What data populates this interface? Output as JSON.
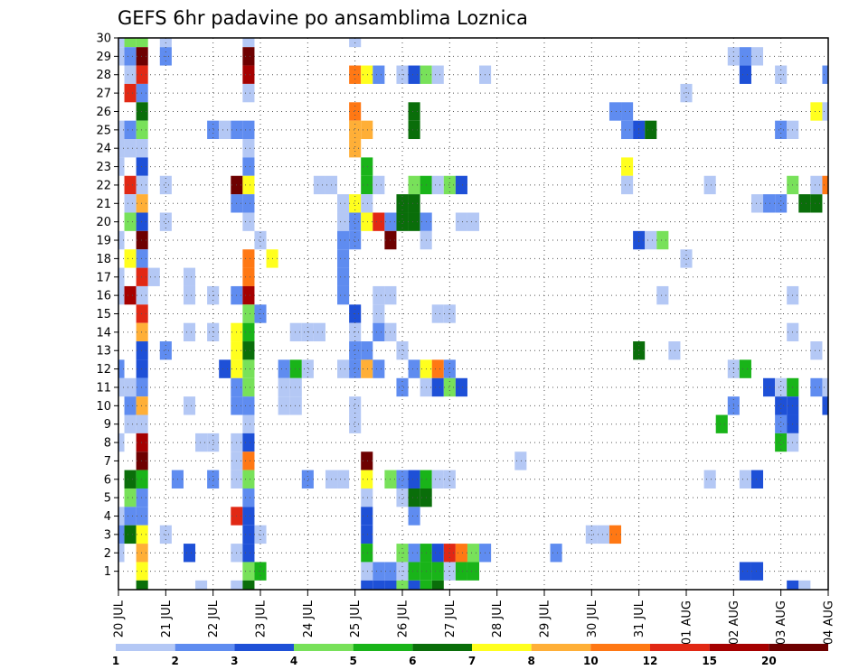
{
  "chart_data": {
    "type": "heatmap",
    "title": "GEFS 6hr padavine po ansamblima Loznica",
    "xlabel": "",
    "ylabel": "",
    "x_tick_labels": [
      "20 JUL",
      "21 JUL",
      "22 JUL",
      "23 JUL",
      "24 JUL",
      "25 JUL",
      "26 JUL",
      "27 JUL",
      "28 JUL",
      "29 JUL",
      "30 JUL",
      "31 JUL",
      "01 AUG",
      "02 AUG",
      "03 AUG",
      "04 AUG"
    ],
    "x_steps_per_day": 4,
    "x_range_steps": [
      0,
      60
    ],
    "y_tick_labels": [
      "1",
      "2",
      "3",
      "4",
      "5",
      "6",
      "7",
      "8",
      "9",
      "10",
      "11",
      "12",
      "13",
      "14",
      "15",
      "16",
      "17",
      "18",
      "19",
      "20",
      "21",
      "22",
      "23",
      "24",
      "25",
      "26",
      "27",
      "28",
      "29",
      "30"
    ],
    "y_range": [
      0,
      30
    ],
    "grid": true,
    "legend": {
      "placement": "bottom",
      "tick_labels": [
        "1",
        "2",
        "3",
        "4",
        "5",
        "6",
        "7",
        "8",
        "10",
        "12",
        "15",
        "20"
      ],
      "colors": [
        "#b4c8f5",
        "#5f8cf0",
        "#1e50d7",
        "#78e15a",
        "#19b419",
        "#0a6e0a",
        "#ffff1e",
        "#ffaf37",
        "#ff7814",
        "#e12814",
        "#a50000",
        "#6e0000"
      ]
    },
    "cells_note_format": "each cell is [time_step_index, member, color_class_index]",
    "cells": [
      [
        0,
        30,
        0
      ],
      [
        0,
        29,
        0
      ],
      [
        0,
        25,
        0
      ],
      [
        0,
        24,
        0
      ],
      [
        0,
        23,
        0
      ],
      [
        0,
        19,
        0
      ],
      [
        0,
        17,
        0
      ],
      [
        0,
        16,
        0
      ],
      [
        0,
        12,
        1
      ],
      [
        0,
        11,
        0
      ],
      [
        0,
        8,
        0
      ],
      [
        0,
        4,
        0
      ],
      [
        0,
        3,
        1
      ],
      [
        0,
        2,
        0
      ],
      [
        1,
        30,
        3
      ],
      [
        1,
        29,
        1
      ],
      [
        1,
        28,
        0
      ],
      [
        1,
        27,
        9
      ],
      [
        1,
        25,
        1
      ],
      [
        1,
        24,
        0
      ],
      [
        1,
        22,
        9
      ],
      [
        1,
        21,
        0
      ],
      [
        1,
        20,
        3
      ],
      [
        1,
        18,
        6
      ],
      [
        1,
        16,
        10
      ],
      [
        1,
        11,
        0
      ],
      [
        1,
        10,
        1
      ],
      [
        1,
        9,
        0
      ],
      [
        1,
        6,
        5
      ],
      [
        1,
        5,
        3
      ],
      [
        1,
        4,
        1
      ],
      [
        1,
        3,
        5
      ],
      [
        2,
        30,
        3
      ],
      [
        2,
        29,
        11
      ],
      [
        2,
        28,
        9
      ],
      [
        2,
        27,
        1
      ],
      [
        2,
        26,
        5
      ],
      [
        2,
        25,
        3
      ],
      [
        2,
        24,
        0
      ],
      [
        2,
        23,
        2
      ],
      [
        2,
        22,
        0
      ],
      [
        2,
        21,
        7
      ],
      [
        2,
        20,
        2
      ],
      [
        2,
        19,
        11
      ],
      [
        2,
        18,
        1
      ],
      [
        2,
        17,
        9
      ],
      [
        2,
        16,
        0
      ],
      [
        2,
        15,
        9
      ],
      [
        2,
        14,
        7
      ],
      [
        2,
        13,
        2
      ],
      [
        2,
        12,
        2
      ],
      [
        2,
        11,
        1
      ],
      [
        2,
        10,
        7
      ],
      [
        2,
        9,
        0
      ],
      [
        2,
        8,
        10
      ],
      [
        2,
        7,
        11
      ],
      [
        2,
        6,
        4
      ],
      [
        2,
        5,
        1
      ],
      [
        2,
        4,
        1
      ],
      [
        2,
        3,
        6
      ],
      [
        2,
        2,
        7
      ],
      [
        2,
        1,
        6
      ],
      [
        2,
        0,
        5
      ],
      [
        3,
        17,
        0
      ],
      [
        4,
        30,
        0
      ],
      [
        4,
        29,
        1
      ],
      [
        4,
        22,
        0
      ],
      [
        4,
        20,
        0
      ],
      [
        4,
        13,
        1
      ],
      [
        4,
        3,
        0
      ],
      [
        5,
        6,
        1
      ],
      [
        6,
        17,
        0
      ],
      [
        6,
        14,
        0
      ],
      [
        6,
        16,
        0
      ],
      [
        6,
        10,
        0
      ],
      [
        6,
        2,
        2
      ],
      [
        7,
        8,
        0
      ],
      [
        7,
        0,
        0
      ],
      [
        8,
        25,
        1
      ],
      [
        8,
        16,
        0
      ],
      [
        8,
        14,
        0
      ],
      [
        8,
        8,
        0
      ],
      [
        8,
        6,
        1
      ],
      [
        9,
        25,
        0
      ],
      [
        9,
        12,
        2
      ],
      [
        10,
        25,
        1
      ],
      [
        10,
        21,
        1
      ],
      [
        10,
        22,
        11
      ],
      [
        10,
        16,
        1
      ],
      [
        10,
        14,
        6
      ],
      [
        10,
        13,
        6
      ],
      [
        10,
        12,
        6
      ],
      [
        10,
        11,
        1
      ],
      [
        10,
        10,
        1
      ],
      [
        10,
        8,
        0
      ],
      [
        10,
        7,
        0
      ],
      [
        10,
        6,
        0
      ],
      [
        10,
        4,
        9
      ],
      [
        10,
        2,
        0
      ],
      [
        10,
        0,
        0
      ],
      [
        11,
        30,
        0
      ],
      [
        11,
        29,
        11
      ],
      [
        11,
        28,
        10
      ],
      [
        11,
        27,
        0
      ],
      [
        11,
        25,
        1
      ],
      [
        11,
        24,
        0
      ],
      [
        11,
        23,
        1
      ],
      [
        11,
        22,
        6
      ],
      [
        11,
        21,
        1
      ],
      [
        11,
        20,
        0
      ],
      [
        11,
        18,
        8
      ],
      [
        11,
        17,
        8
      ],
      [
        11,
        16,
        10
      ],
      [
        11,
        15,
        3
      ],
      [
        11,
        14,
        4
      ],
      [
        11,
        13,
        5
      ],
      [
        11,
        12,
        3
      ],
      [
        11,
        11,
        3
      ],
      [
        11,
        10,
        1
      ],
      [
        11,
        9,
        0
      ],
      [
        11,
        8,
        2
      ],
      [
        11,
        7,
        8
      ],
      [
        11,
        6,
        3
      ],
      [
        11,
        5,
        1
      ],
      [
        11,
        4,
        2
      ],
      [
        11,
        3,
        2
      ],
      [
        11,
        2,
        2
      ],
      [
        11,
        1,
        3
      ],
      [
        11,
        0,
        5
      ],
      [
        12,
        19,
        0
      ],
      [
        12,
        15,
        1
      ],
      [
        12,
        3,
        0
      ],
      [
        12,
        1,
        4
      ],
      [
        13,
        18,
        6
      ],
      [
        14,
        12,
        1
      ],
      [
        14,
        11,
        0
      ],
      [
        14,
        10,
        0
      ],
      [
        15,
        14,
        0
      ],
      [
        15,
        12,
        4
      ],
      [
        15,
        11,
        0
      ],
      [
        15,
        10,
        0
      ],
      [
        16,
        14,
        0
      ],
      [
        16,
        12,
        0
      ],
      [
        16,
        6,
        1
      ],
      [
        17,
        14,
        0
      ],
      [
        17,
        22,
        0
      ],
      [
        18,
        22,
        0
      ],
      [
        18,
        6,
        0
      ],
      [
        19,
        20,
        0
      ],
      [
        19,
        19,
        1
      ],
      [
        19,
        18,
        1
      ],
      [
        19,
        17,
        1
      ],
      [
        19,
        16,
        1
      ],
      [
        19,
        21,
        0
      ],
      [
        19,
        12,
        0
      ],
      [
        19,
        6,
        0
      ],
      [
        20,
        30,
        0
      ],
      [
        20,
        28,
        8
      ],
      [
        20,
        26,
        8
      ],
      [
        20,
        25,
        7
      ],
      [
        20,
        24,
        7
      ],
      [
        20,
        21,
        6
      ],
      [
        20,
        20,
        1
      ],
      [
        20,
        19,
        1
      ],
      [
        20,
        15,
        2
      ],
      [
        20,
        14,
        0
      ],
      [
        20,
        13,
        1
      ],
      [
        20,
        12,
        1
      ],
      [
        20,
        10,
        0
      ],
      [
        20,
        9,
        0
      ],
      [
        21,
        28,
        6
      ],
      [
        21,
        25,
        7
      ],
      [
        21,
        23,
        4
      ],
      [
        21,
        22,
        4
      ],
      [
        21,
        21,
        0
      ],
      [
        21,
        20,
        6
      ],
      [
        21,
        13,
        1
      ],
      [
        21,
        12,
        7
      ],
      [
        21,
        7,
        11
      ],
      [
        21,
        6,
        6
      ],
      [
        21,
        5,
        0
      ],
      [
        21,
        4,
        2
      ],
      [
        21,
        3,
        2
      ],
      [
        21,
        2,
        4
      ],
      [
        21,
        1,
        0
      ],
      [
        21,
        0,
        2
      ],
      [
        22,
        28,
        1
      ],
      [
        22,
        22,
        0
      ],
      [
        22,
        20,
        9
      ],
      [
        22,
        16,
        0
      ],
      [
        22,
        15,
        0
      ],
      [
        22,
        14,
        1
      ],
      [
        22,
        12,
        1
      ],
      [
        22,
        1,
        1
      ],
      [
        22,
        0,
        2
      ],
      [
        23,
        20,
        1
      ],
      [
        23,
        19,
        11
      ],
      [
        23,
        16,
        0
      ],
      [
        23,
        14,
        0
      ],
      [
        23,
        6,
        3
      ],
      [
        23,
        1,
        1
      ],
      [
        23,
        0,
        2
      ],
      [
        24,
        28,
        0
      ],
      [
        24,
        21,
        5
      ],
      [
        24,
        20,
        5
      ],
      [
        24,
        13,
        0
      ],
      [
        24,
        11,
        1
      ],
      [
        24,
        6,
        1
      ],
      [
        24,
        5,
        0
      ],
      [
        24,
        2,
        3
      ],
      [
        24,
        1,
        0
      ],
      [
        24,
        0,
        3
      ],
      [
        25,
        28,
        2
      ],
      [
        25,
        26,
        5
      ],
      [
        25,
        25,
        5
      ],
      [
        25,
        22,
        3
      ],
      [
        25,
        21,
        5
      ],
      [
        25,
        20,
        5
      ],
      [
        25,
        12,
        1
      ],
      [
        25,
        6,
        2
      ],
      [
        25,
        5,
        5
      ],
      [
        25,
        4,
        1
      ],
      [
        25,
        2,
        1
      ],
      [
        25,
        1,
        4
      ],
      [
        25,
        0,
        2
      ],
      [
        26,
        28,
        3
      ],
      [
        26,
        22,
        4
      ],
      [
        26,
        20,
        1
      ],
      [
        26,
        19,
        0
      ],
      [
        26,
        12,
        6
      ],
      [
        26,
        11,
        0
      ],
      [
        26,
        6,
        4
      ],
      [
        26,
        5,
        5
      ],
      [
        26,
        2,
        4
      ],
      [
        26,
        1,
        4
      ],
      [
        26,
        0,
        4
      ],
      [
        27,
        28,
        0
      ],
      [
        27,
        22,
        0
      ],
      [
        27,
        15,
        0
      ],
      [
        27,
        12,
        8
      ],
      [
        27,
        11,
        2
      ],
      [
        27,
        6,
        0
      ],
      [
        27,
        2,
        2
      ],
      [
        27,
        1,
        4
      ],
      [
        27,
        0,
        5
      ],
      [
        28,
        22,
        3
      ],
      [
        28,
        15,
        0
      ],
      [
        28,
        12,
        1
      ],
      [
        28,
        11,
        3
      ],
      [
        28,
        6,
        0
      ],
      [
        28,
        2,
        9
      ],
      [
        28,
        1,
        0
      ],
      [
        29,
        22,
        2
      ],
      [
        29,
        20,
        0
      ],
      [
        29,
        11,
        2
      ],
      [
        29,
        2,
        8
      ],
      [
        29,
        1,
        4
      ],
      [
        30,
        20,
        0
      ],
      [
        30,
        2,
        3
      ],
      [
        30,
        1,
        4
      ],
      [
        31,
        28,
        0
      ],
      [
        31,
        2,
        1
      ],
      [
        34,
        7,
        0
      ],
      [
        37,
        2,
        1
      ],
      [
        40,
        3,
        0
      ],
      [
        41,
        3,
        0
      ],
      [
        42,
        3,
        8
      ],
      [
        42,
        26,
        1
      ],
      [
        43,
        26,
        1
      ],
      [
        43,
        25,
        1
      ],
      [
        43,
        23,
        6
      ],
      [
        43,
        22,
        0
      ],
      [
        44,
        25,
        2
      ],
      [
        44,
        13,
        5
      ],
      [
        44,
        19,
        2
      ],
      [
        45,
        25,
        5
      ],
      [
        45,
        19,
        0
      ],
      [
        46,
        19,
        3
      ],
      [
        46,
        16,
        0
      ],
      [
        47,
        13,
        0
      ],
      [
        48,
        27,
        0
      ],
      [
        48,
        18,
        0
      ],
      [
        50,
        22,
        0
      ],
      [
        50,
        6,
        0
      ],
      [
        51,
        9,
        4
      ],
      [
        52,
        29,
        0
      ],
      [
        52,
        12,
        0
      ],
      [
        52,
        10,
        1
      ],
      [
        53,
        29,
        1
      ],
      [
        53,
        28,
        2
      ],
      [
        53,
        12,
        4
      ],
      [
        53,
        6,
        0
      ],
      [
        53,
        1,
        2
      ],
      [
        54,
        29,
        0
      ],
      [
        54,
        21,
        0
      ],
      [
        54,
        6,
        2
      ],
      [
        54,
        1,
        2
      ],
      [
        55,
        21,
        1
      ],
      [
        55,
        11,
        2
      ],
      [
        56,
        28,
        0
      ],
      [
        56,
        25,
        1
      ],
      [
        56,
        21,
        1
      ],
      [
        56,
        11,
        0
      ],
      [
        56,
        10,
        2
      ],
      [
        56,
        9,
        1
      ],
      [
        56,
        8,
        4
      ],
      [
        57,
        25,
        0
      ],
      [
        57,
        22,
        3
      ],
      [
        57,
        16,
        0
      ],
      [
        57,
        14,
        0
      ],
      [
        57,
        11,
        4
      ],
      [
        57,
        10,
        2
      ],
      [
        57,
        9,
        2
      ],
      [
        57,
        8,
        0
      ],
      [
        57,
        0,
        2
      ],
      [
        58,
        21,
        5
      ],
      [
        58,
        0,
        0
      ],
      [
        59,
        26,
        6
      ],
      [
        59,
        21,
        5
      ],
      [
        59,
        22,
        0
      ],
      [
        59,
        13,
        0
      ],
      [
        59,
        11,
        1
      ],
      [
        60,
        28,
        1
      ],
      [
        60,
        26,
        0
      ],
      [
        60,
        22,
        8
      ],
      [
        60,
        11,
        0
      ],
      [
        60,
        10,
        2
      ]
    ]
  }
}
